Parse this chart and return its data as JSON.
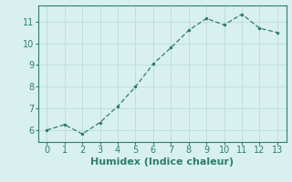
{
  "x": [
    0,
    1,
    2,
    3,
    4,
    5,
    6,
    7,
    8,
    9,
    10,
    11,
    12,
    13
  ],
  "y": [
    6.0,
    6.25,
    5.82,
    6.35,
    7.1,
    8.0,
    9.05,
    9.8,
    10.6,
    11.15,
    10.85,
    11.35,
    10.7,
    10.5
  ],
  "line_color": "#2e7d6e",
  "marker": ".",
  "marker_size": 3,
  "xlabel": "Humidex (Indice chaleur)",
  "xlim": [
    -0.5,
    13.5
  ],
  "ylim": [
    5.45,
    11.75
  ],
  "xticks": [
    0,
    1,
    2,
    3,
    4,
    5,
    6,
    7,
    8,
    9,
    10,
    11,
    12,
    13
  ],
  "yticks": [
    6,
    7,
    8,
    9,
    10,
    11
  ],
  "background_color": "#d8f0f0",
  "grid_color": "#c0dede",
  "tick_label_fontsize": 7,
  "xlabel_fontsize": 8,
  "line_color_dark": "#2e7d6e"
}
